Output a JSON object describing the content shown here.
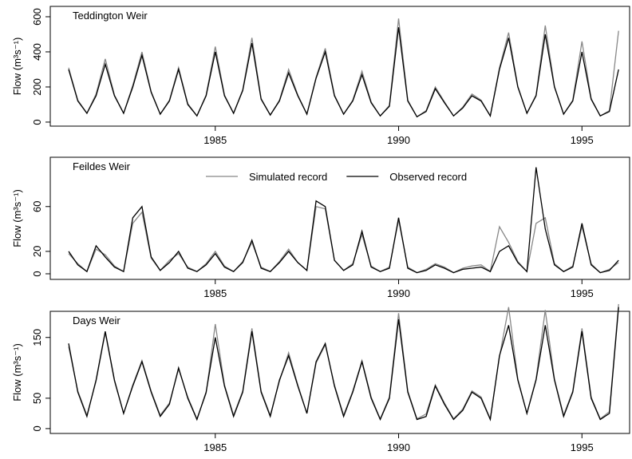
{
  "chart_data": [
    {
      "type": "line",
      "title": "Teddington Weir",
      "y_label": "Flow (m³s⁻¹)",
      "x": [
        1981,
        1981.25,
        1981.5,
        1981.75,
        1982,
        1982.25,
        1982.5,
        1982.75,
        1983,
        1983.25,
        1983.5,
        1983.75,
        1984,
        1984.25,
        1984.5,
        1984.75,
        1985,
        1985.25,
        1985.5,
        1985.75,
        1986,
        1986.25,
        1986.5,
        1986.75,
        1987,
        1987.25,
        1987.5,
        1987.75,
        1988,
        1988.25,
        1988.5,
        1988.75,
        1989,
        1989.25,
        1989.5,
        1989.75,
        1990,
        1990.25,
        1990.5,
        1990.75,
        1991,
        1991.25,
        1991.5,
        1991.75,
        1992,
        1992.25,
        1992.5,
        1992.75,
        1993,
        1993.25,
        1993.5,
        1993.75,
        1994,
        1994.25,
        1994.5,
        1994.75,
        1995,
        1995.25,
        1995.5,
        1995.75,
        1996
      ],
      "series": [
        {
          "color": "#888888",
          "values": [
            310,
            125,
            50,
            160,
            360,
            155,
            50,
            210,
            400,
            175,
            45,
            125,
            310,
            105,
            35,
            155,
            430,
            155,
            50,
            185,
            480,
            135,
            40,
            125,
            300,
            155,
            45,
            255,
            420,
            155,
            45,
            125,
            290,
            115,
            35,
            95,
            590,
            125,
            30,
            65,
            200,
            115,
            35,
            85,
            160,
            125,
            35,
            310,
            510,
            205,
            50,
            155,
            550,
            205,
            45,
            125,
            460,
            135,
            35,
            65,
            520
          ]
        },
        {
          "color": "#000000",
          "values": [
            300,
            120,
            50,
            150,
            330,
            150,
            50,
            200,
            380,
            170,
            45,
            120,
            300,
            100,
            35,
            150,
            400,
            150,
            50,
            180,
            450,
            130,
            40,
            120,
            280,
            150,
            45,
            250,
            400,
            150,
            45,
            120,
            270,
            110,
            35,
            90,
            540,
            120,
            30,
            60,
            190,
            110,
            35,
            80,
            150,
            120,
            35,
            300,
            480,
            200,
            50,
            150,
            500,
            200,
            45,
            120,
            400,
            130,
            35,
            60,
            300
          ]
        }
      ],
      "xlim": [
        1980.5,
        1996.3
      ],
      "xticks": [
        1985,
        1990,
        1995
      ],
      "ylim": [
        -23,
        659
      ],
      "yticks": [
        0,
        200,
        400,
        600
      ]
    },
    {
      "type": "line",
      "title": "Feildes Weir",
      "y_label": "Flow (m³s⁻¹)",
      "legend": "top",
      "x": [
        1981,
        1981.25,
        1981.5,
        1981.75,
        1982,
        1982.25,
        1982.5,
        1982.75,
        1983,
        1983.25,
        1983.5,
        1983.75,
        1984,
        1984.25,
        1984.5,
        1984.75,
        1985,
        1985.25,
        1985.5,
        1985.75,
        1986,
        1986.25,
        1986.5,
        1986.75,
        1987,
        1987.25,
        1987.5,
        1987.75,
        1988,
        1988.25,
        1988.5,
        1988.75,
        1989,
        1989.25,
        1989.5,
        1989.75,
        1990,
        1990.25,
        1990.5,
        1990.75,
        1991,
        1991.25,
        1991.5,
        1991.75,
        1992,
        1992.25,
        1992.5,
        1992.75,
        1993,
        1993.25,
        1993.5,
        1993.75,
        1994,
        1994.25,
        1994.5,
        1994.75,
        1995,
        1995.25,
        1995.5,
        1995.75,
        1996
      ],
      "series": [
        {
          "name": "Simulated record",
          "color": "#888888",
          "values": [
            18,
            9,
            2,
            22,
            17,
            7,
            2,
            45,
            55,
            14,
            3,
            12,
            18,
            6,
            2,
            9,
            20,
            7,
            2,
            11,
            28,
            6,
            2,
            11,
            22,
            10,
            3,
            60,
            58,
            12,
            3,
            9,
            35,
            7,
            2,
            6,
            48,
            6,
            1,
            4,
            9,
            6,
            1,
            5,
            7,
            8,
            2,
            42,
            28,
            11,
            2,
            45,
            50,
            9,
            2,
            7,
            42,
            9,
            1,
            4,
            10
          ]
        },
        {
          "name": "Observed record",
          "color": "#000000",
          "values": [
            20,
            8,
            2,
            25,
            15,
            6,
            2,
            50,
            60,
            15,
            3,
            10,
            20,
            5,
            2,
            8,
            18,
            6,
            2,
            10,
            30,
            5,
            2,
            10,
            20,
            10,
            3,
            65,
            60,
            12,
            3,
            8,
            38,
            6,
            2,
            5,
            50,
            5,
            1,
            3,
            8,
            5,
            1,
            4,
            5,
            6,
            2,
            20,
            25,
            10,
            2,
            95,
            40,
            8,
            2,
            6,
            45,
            8,
            1,
            3,
            12
          ]
        }
      ],
      "xlim": [
        1980.5,
        1996.3
      ],
      "xticks": [
        1985,
        1990,
        1995
      ],
      "ylim": [
        -5,
        104
      ],
      "yticks": [
        0,
        20,
        60
      ]
    },
    {
      "type": "line",
      "title": "Days Weir",
      "y_label": "Flow (m³s⁻¹)",
      "x": [
        1981,
        1981.25,
        1981.5,
        1981.75,
        1982,
        1982.25,
        1982.5,
        1982.75,
        1983,
        1983.25,
        1983.5,
        1983.75,
        1984,
        1984.25,
        1984.5,
        1984.75,
        1985,
        1985.25,
        1985.5,
        1985.75,
        1986,
        1986.25,
        1986.5,
        1986.75,
        1987,
        1987.25,
        1987.5,
        1987.75,
        1988,
        1988.25,
        1988.5,
        1988.75,
        1989,
        1989.25,
        1989.5,
        1989.75,
        1990,
        1990.25,
        1990.5,
        1990.75,
        1991,
        1991.25,
        1991.5,
        1991.75,
        1992,
        1992.25,
        1992.5,
        1992.75,
        1993,
        1993.25,
        1993.5,
        1993.75,
        1994,
        1994.25,
        1994.5,
        1994.75,
        1995,
        1995.25,
        1995.5,
        1995.75,
        1996
      ],
      "series": [
        {
          "color": "#888888",
          "values": [
            135,
            62,
            22,
            78,
            158,
            78,
            25,
            72,
            112,
            62,
            22,
            42,
            98,
            52,
            16,
            58,
            172,
            72,
            22,
            62,
            165,
            62,
            22,
            78,
            125,
            72,
            25,
            108,
            138,
            72,
            22,
            62,
            112,
            52,
            16,
            52,
            190,
            62,
            16,
            24,
            72,
            42,
            16,
            32,
            62,
            52,
            16,
            118,
            200,
            82,
            25,
            82,
            195,
            82,
            22,
            62,
            165,
            52,
            16,
            28,
            205
          ]
        },
        {
          "color": "#000000",
          "values": [
            140,
            60,
            20,
            80,
            160,
            80,
            25,
            70,
            110,
            60,
            20,
            40,
            100,
            50,
            15,
            60,
            150,
            70,
            20,
            60,
            160,
            60,
            20,
            80,
            120,
            70,
            25,
            110,
            140,
            70,
            20,
            60,
            110,
            50,
            15,
            50,
            180,
            60,
            15,
            20,
            70,
            40,
            15,
            30,
            60,
            50,
            15,
            120,
            170,
            80,
            25,
            80,
            170,
            80,
            20,
            60,
            160,
            50,
            15,
            25,
            200
          ]
        }
      ],
      "xlim": [
        1980.5,
        1996.3
      ],
      "xticks": [
        1985,
        1990,
        1995
      ],
      "ylim": [
        -8,
        193
      ],
      "yticks": [
        0,
        50,
        150
      ]
    }
  ]
}
